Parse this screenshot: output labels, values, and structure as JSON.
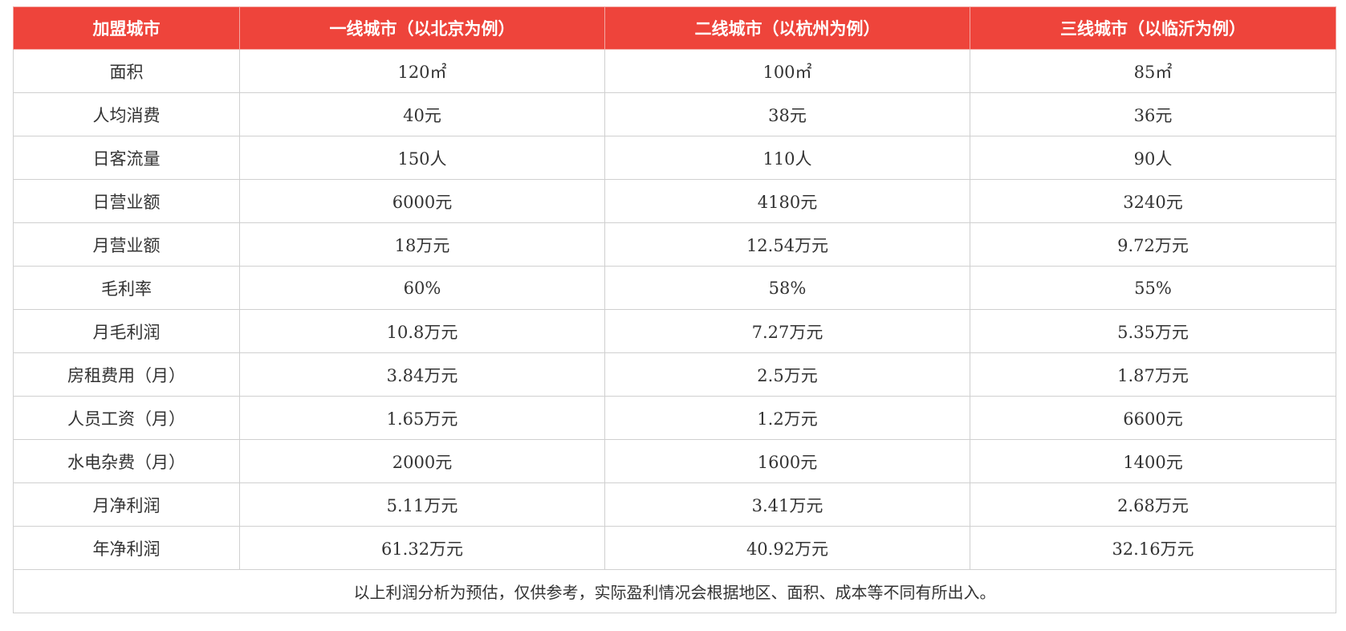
{
  "table": {
    "headers": [
      "加盟城市",
      "一线城市（以北京为例）",
      "二线城市（以杭州为例）",
      "三线城市（以临沂为例）"
    ],
    "rows": [
      [
        "面积",
        "120㎡",
        "100㎡",
        "85㎡"
      ],
      [
        "人均消费",
        "40元",
        "38元",
        "36元"
      ],
      [
        "日客流量",
        "150人",
        "110人",
        "90人"
      ],
      [
        "日营业额",
        "6000元",
        "4180元",
        "3240元"
      ],
      [
        "月营业额",
        "18万元",
        "12.54万元",
        "9.72万元"
      ],
      [
        "毛利率",
        "60%",
        "58%",
        "55%"
      ],
      [
        "月毛利润",
        "10.8万元",
        "7.27万元",
        "5.35万元"
      ],
      [
        "房租费用（月）",
        "3.84万元",
        "2.5万元",
        "1.87万元"
      ],
      [
        "人员工资（月）",
        "1.65万元",
        "1.2万元",
        "6600元"
      ],
      [
        "水电杂费（月）",
        "2000元",
        "1600元",
        "1400元"
      ],
      [
        "月净利润",
        "5.11万元",
        "3.41万元",
        "2.68万元"
      ],
      [
        "年净利润",
        "61.32万元",
        "40.92万元",
        "32.16万元"
      ]
    ],
    "note": "以上利润分析为预估，仅供参考，实际盈利情况会根据地区、面积、成本等不同有所出入。"
  },
  "colors": {
    "header_bg": "#ee443b",
    "header_text": "#ffffff",
    "border": "#d0d0d0",
    "body_text": "#333333"
  }
}
